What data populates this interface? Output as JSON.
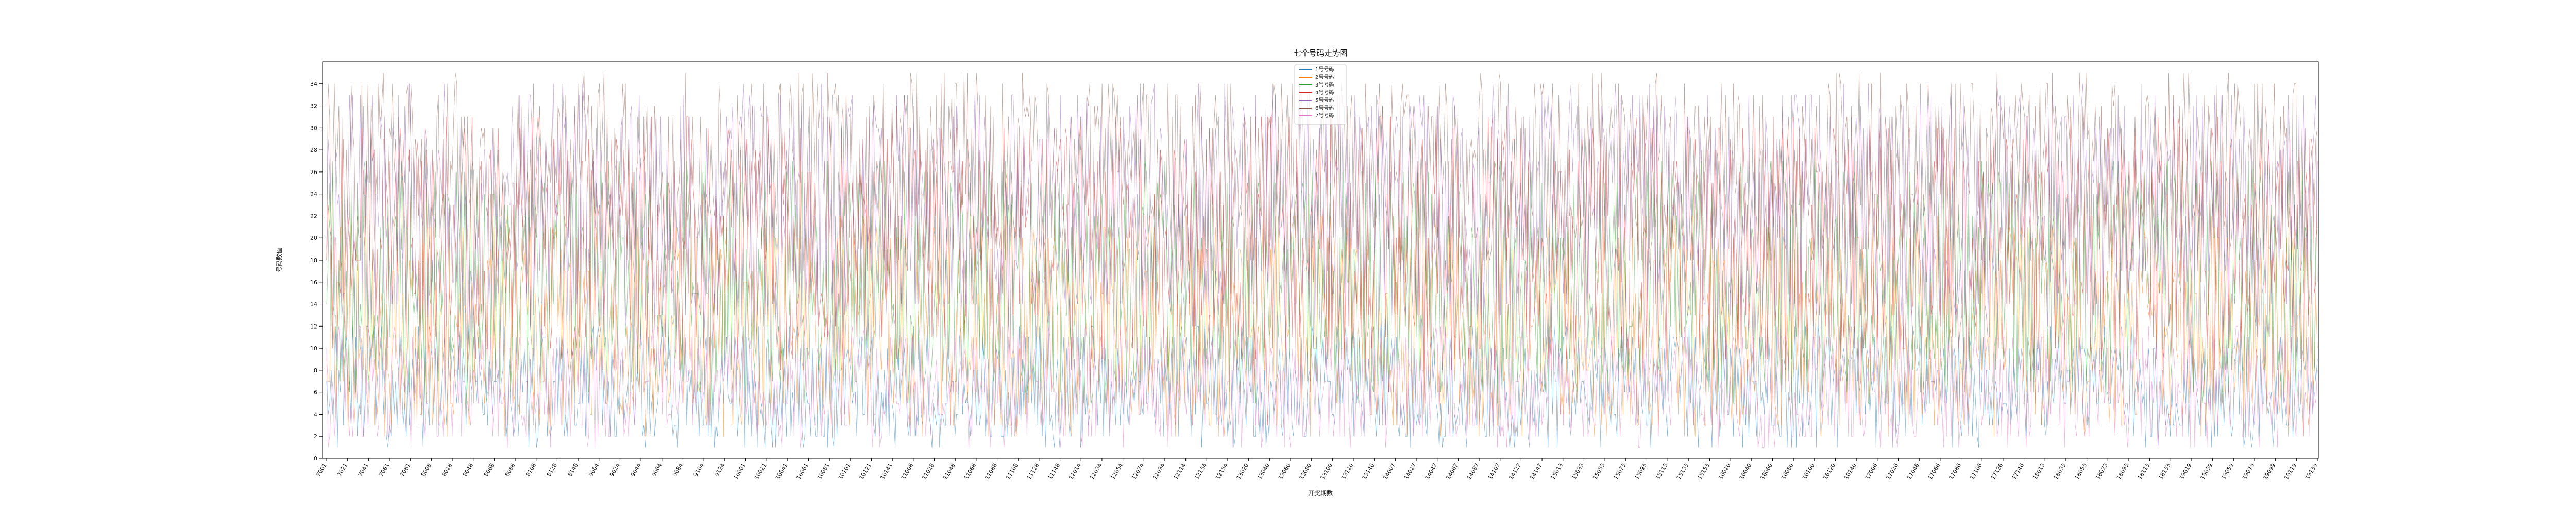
{
  "chart_data": {
    "type": "line",
    "title": "七个号码走势图",
    "xlabel": "开奖期数",
    "ylabel": "号码数值",
    "ylim": [
      0,
      36
    ],
    "yticks": [
      0,
      2,
      4,
      6,
      8,
      10,
      12,
      14,
      16,
      18,
      20,
      22,
      24,
      26,
      28,
      30,
      32,
      34
    ],
    "grid": false,
    "legend_position": "top-center",
    "x_tick_labels": [
      "7001",
      "7021",
      "7041",
      "7061",
      "7081",
      "8008",
      "8028",
      "8048",
      "8068",
      "8088",
      "8108",
      "8128",
      "8148",
      "9004",
      "9024",
      "9044",
      "9064",
      "9084",
      "9104",
      "9124",
      "10001",
      "10021",
      "10041",
      "10061",
      "10081",
      "10101",
      "10121",
      "10141",
      "11008",
      "11028",
      "11048",
      "11068",
      "11088",
      "11108",
      "11128",
      "11148",
      "12014",
      "12034",
      "12054",
      "12074",
      "12094",
      "12114",
      "12134",
      "12154",
      "13020",
      "13040",
      "13060",
      "13080",
      "13100",
      "13120",
      "13140",
      "14007",
      "14027",
      "14047",
      "14067",
      "14087",
      "14107",
      "14127",
      "14147",
      "15013",
      "15033",
      "15053",
      "15073",
      "15093",
      "15113",
      "15133",
      "15153",
      "16020",
      "16040",
      "16060",
      "16080",
      "16100",
      "16120",
      "16140",
      "17006",
      "17026",
      "17046",
      "17066",
      "17086",
      "17106",
      "17126",
      "17146",
      "18013",
      "18033",
      "18053",
      "18073",
      "18093",
      "18113",
      "18133",
      "19019",
      "19039",
      "19059",
      "19079",
      "19099",
      "19119",
      "19139"
    ],
    "series": [
      {
        "name": "1号号码",
        "color": "#1f77b4",
        "range": [
          1,
          12
        ]
      },
      {
        "name": "2号号码",
        "color": "#ff7f0e",
        "range": [
          2,
          22
        ]
      },
      {
        "name": "3号号码",
        "color": "#2ca02c",
        "range": [
          5,
          27
        ]
      },
      {
        "name": "4号号码",
        "color": "#d62728",
        "range": [
          8,
          31
        ]
      },
      {
        "name": "5号号码",
        "color": "#9467bd",
        "range": [
          12,
          34
        ]
      },
      {
        "name": "6号号码",
        "color": "#8c564b",
        "range": [
          17,
          35
        ]
      },
      {
        "name": "7号号码",
        "color": "#e377c2",
        "range": [
          1,
          12
        ]
      }
    ]
  }
}
